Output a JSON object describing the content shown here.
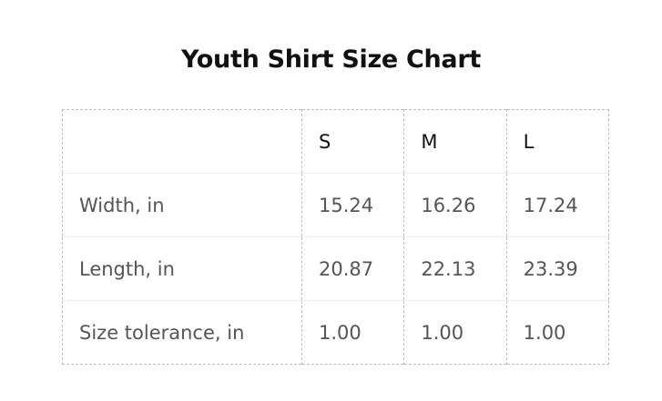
{
  "title": "Youth Shirt Size Chart",
  "table": {
    "headers": [
      "",
      "S",
      "M",
      "L"
    ],
    "rows": [
      {
        "label": "Width, in",
        "values": [
          "15.24",
          "16.26",
          "17.24"
        ]
      },
      {
        "label": "Length, in",
        "values": [
          "20.87",
          "22.13",
          "23.39"
        ]
      },
      {
        "label": "Size tolerance, in",
        "values": [
          "1.00",
          "1.00",
          "1.00"
        ]
      }
    ]
  }
}
